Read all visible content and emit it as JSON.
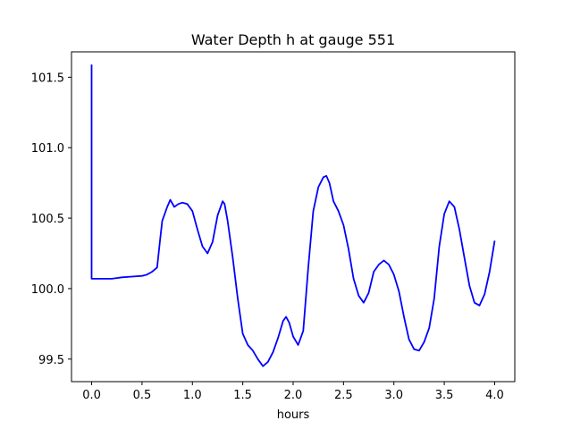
{
  "chart_data": {
    "type": "line",
    "title": "Water Depth h at gauge 551",
    "xlabel": "hours",
    "ylabel": "",
    "xlim": [
      -0.2,
      4.2
    ],
    "ylim": [
      99.34,
      101.68
    ],
    "xticks": [
      0.0,
      0.5,
      1.0,
      1.5,
      2.0,
      2.5,
      3.0,
      3.5,
      4.0
    ],
    "xtick_labels": [
      "0.0",
      "0.5",
      "1.0",
      "1.5",
      "2.0",
      "2.5",
      "3.0",
      "3.5",
      "4.0"
    ],
    "yticks": [
      99.5,
      100.0,
      100.5,
      101.0,
      101.5
    ],
    "ytick_labels": [
      "99.5",
      "100.0",
      "100.5",
      "101.0",
      "101.5"
    ],
    "grid": false,
    "series": [
      {
        "color": "#0000ff",
        "x": [
          0.0,
          0.0,
          0.0,
          0.1,
          0.2,
          0.3,
          0.4,
          0.5,
          0.55,
          0.6,
          0.65,
          0.68,
          0.7,
          0.75,
          0.78,
          0.82,
          0.86,
          0.9,
          0.95,
          1.0,
          1.05,
          1.1,
          1.15,
          1.2,
          1.25,
          1.3,
          1.32,
          1.35,
          1.4,
          1.45,
          1.5,
          1.55,
          1.6,
          1.65,
          1.7,
          1.75,
          1.8,
          1.85,
          1.9,
          1.93,
          1.96,
          2.0,
          2.05,
          2.1,
          2.15,
          2.2,
          2.25,
          2.3,
          2.33,
          2.36,
          2.4,
          2.45,
          2.5,
          2.55,
          2.6,
          2.65,
          2.7,
          2.75,
          2.8,
          2.85,
          2.9,
          2.95,
          3.0,
          3.05,
          3.1,
          3.15,
          3.2,
          3.25,
          3.3,
          3.35,
          3.4,
          3.45,
          3.5,
          3.55,
          3.6,
          3.65,
          3.7,
          3.75,
          3.8,
          3.85,
          3.9,
          3.95,
          4.0
        ],
        "values": [
          101.59,
          100.85,
          100.07,
          100.07,
          100.07,
          100.08,
          100.085,
          100.09,
          100.1,
          100.12,
          100.15,
          100.35,
          100.48,
          100.58,
          100.63,
          100.58,
          100.6,
          100.61,
          100.6,
          100.55,
          100.42,
          100.3,
          100.25,
          100.33,
          100.52,
          100.62,
          100.6,
          100.48,
          100.22,
          99.93,
          99.68,
          99.6,
          99.56,
          99.5,
          99.45,
          99.48,
          99.55,
          99.65,
          99.77,
          99.8,
          99.76,
          99.66,
          99.6,
          99.7,
          100.15,
          100.55,
          100.72,
          100.79,
          100.8,
          100.75,
          100.62,
          100.55,
          100.45,
          100.28,
          100.07,
          99.95,
          99.9,
          99.97,
          100.12,
          100.17,
          100.2,
          100.17,
          100.1,
          99.98,
          99.8,
          99.64,
          99.57,
          99.56,
          99.62,
          99.72,
          99.93,
          100.3,
          100.53,
          100.62,
          100.58,
          100.42,
          100.22,
          100.02,
          99.9,
          99.88,
          99.96,
          100.12,
          100.34
        ]
      }
    ]
  }
}
